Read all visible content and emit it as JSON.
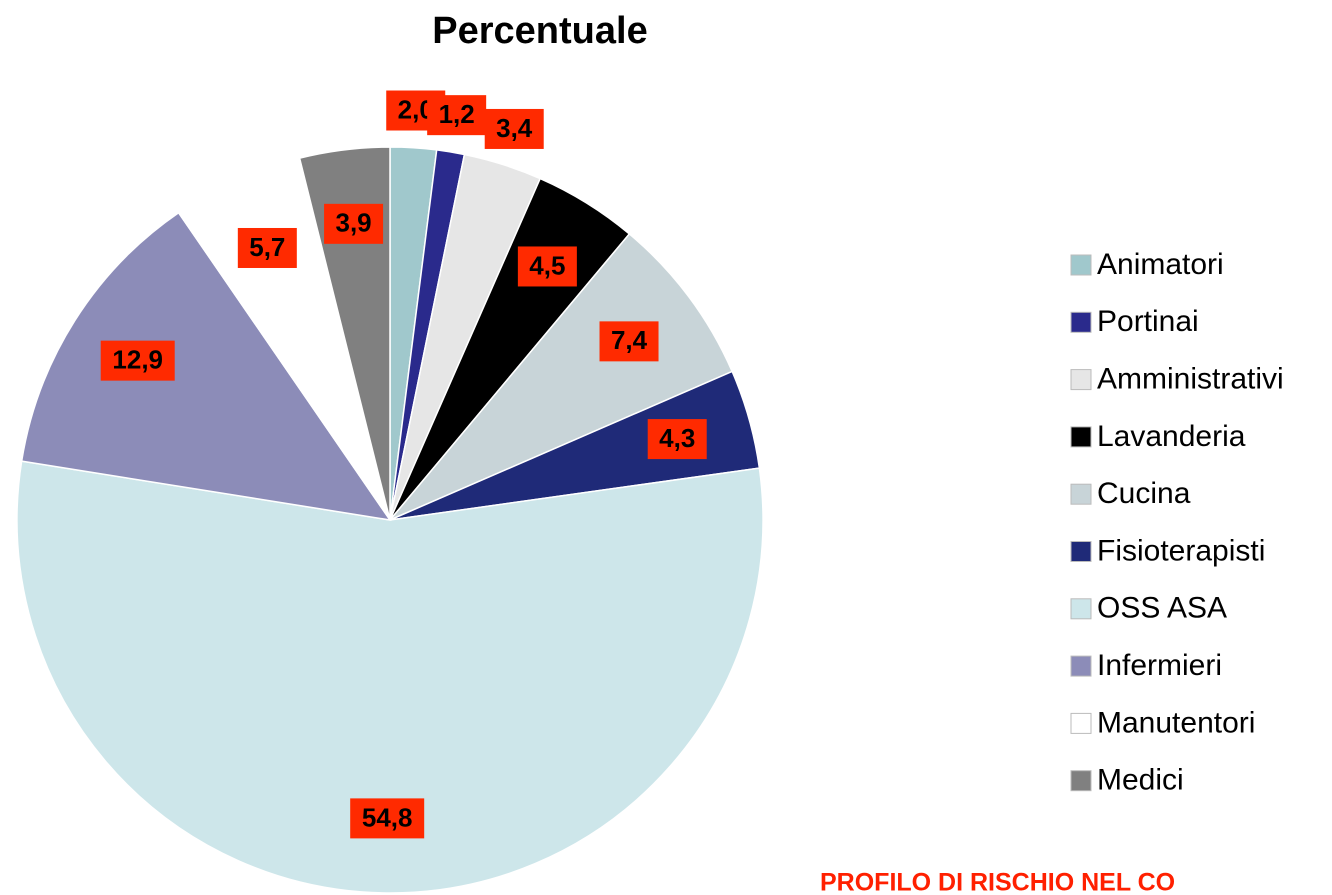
{
  "chart_data": {
    "type": "pie",
    "title": "Percentuale",
    "categories": [
      "Animatori",
      "Portinai",
      "Amministrativi",
      "Lavanderia",
      "Cucina",
      "Fisioterapisti",
      "OSS ASA",
      "Infermieri",
      "Manutentori",
      "Medici"
    ],
    "values": [
      2.0,
      1.2,
      3.4,
      4.5,
      7.4,
      4.3,
      54.8,
      12.9,
      5.7,
      3.9
    ],
    "value_labels": [
      "2,0",
      "1,2",
      "3,4",
      "4,5",
      "7,4",
      "4,3",
      "54,8",
      "12,9",
      "5,7",
      "3,9"
    ],
    "colors": [
      "#a0c8cc",
      "#2a2a8c",
      "#e6e6e6",
      "#000000",
      "#c8d4d8",
      "#1f2a78",
      "#cde6ea",
      "#8c8cb8",
      "#ffffff",
      "#808080"
    ],
    "legend": "right",
    "annotation": "PROFILO DI RISCHIO NEL CO"
  }
}
